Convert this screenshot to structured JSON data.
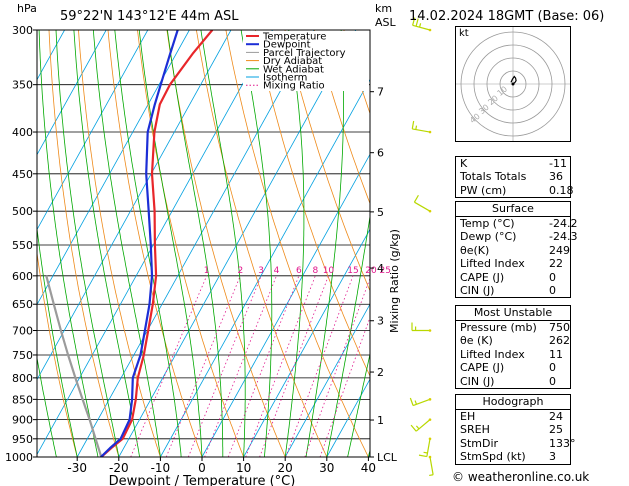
{
  "header": {
    "pressure_unit": "hPa",
    "location": "59°22'N 143°12'E 44m ASL",
    "height_unit": "km\nASL",
    "height_unit_line1": "km",
    "height_unit_line2": "ASL",
    "datetime": "14.02.2024 18GMT (Base: 06)"
  },
  "colors": {
    "temperature": "#e8262a",
    "dewpoint": "#1c2ed6",
    "parcel": "#9b9b9b",
    "dry_adiabat": "#ee8a1a",
    "wet_adiabat": "#00a800",
    "isotherm": "#00a0e0",
    "mixing_ratio": "#e0168c"
  },
  "chart_data": {
    "type": "skew-t",
    "xlabel": "Dewpoint / Temperature (°C)",
    "ylabel_right": "Mixing Ratio (g/kg)",
    "x_ticks": [
      -30,
      -20,
      -10,
      0,
      10,
      20,
      30,
      40
    ],
    "x_tick_labels": [
      "-30",
      "-20",
      "-10",
      "0",
      "10",
      "20",
      "30",
      "40"
    ],
    "pressure_levels": [
      300,
      350,
      400,
      450,
      500,
      550,
      600,
      650,
      700,
      750,
      800,
      850,
      900,
      950,
      1000
    ],
    "pressure_labels": [
      "300",
      "350",
      "400",
      "450",
      "500",
      "550",
      "600",
      "650",
      "700",
      "750",
      "800",
      "850",
      "900",
      "950",
      "1000"
    ],
    "height_km": [
      {
        "label": "7",
        "p": 357
      },
      {
        "label": "6",
        "p": 424
      },
      {
        "label": "5",
        "p": 501
      },
      {
        "label": "4",
        "p": 587
      },
      {
        "label": "3",
        "p": 681
      },
      {
        "label": "2",
        "p": 787
      },
      {
        "label": "1",
        "p": 901
      },
      {
        "label": "LCL",
        "p": 1000
      }
    ],
    "mixing_ratio_labels": [
      "1",
      "2",
      "3",
      "4",
      "6",
      "8",
      "10",
      "15",
      "20",
      "25"
    ],
    "mixing_ratio_values": [
      1,
      2,
      3,
      4,
      6,
      8,
      10,
      15,
      20,
      25
    ],
    "legend": [
      "Temperature",
      "Dewpoint",
      "Parcel Trajectory",
      "Dry Adiabat",
      "Wet Adiabat",
      "Isotherm",
      "Mixing Ratio"
    ],
    "temperature": [
      {
        "p": 1000,
        "t": -24.2
      },
      {
        "p": 975,
        "t": -23.0
      },
      {
        "p": 950,
        "t": -21.5
      },
      {
        "p": 900,
        "t": -21.8
      },
      {
        "p": 850,
        "t": -23.6
      },
      {
        "p": 800,
        "t": -26.0
      },
      {
        "p": 750,
        "t": -27.6
      },
      {
        "p": 700,
        "t": -29.8
      },
      {
        "p": 650,
        "t": -32.2
      },
      {
        "p": 600,
        "t": -35.2
      },
      {
        "p": 550,
        "t": -39.6
      },
      {
        "p": 500,
        "t": -44.2
      },
      {
        "p": 450,
        "t": -49.8
      },
      {
        "p": 400,
        "t": -54.8
      },
      {
        "p": 370,
        "t": -57.2
      },
      {
        "p": 350,
        "t": -57.4
      },
      {
        "p": 320,
        "t": -56.0
      },
      {
        "p": 300,
        "t": -54.5
      }
    ],
    "dewpoint": [
      {
        "p": 1000,
        "t": -24.3
      },
      {
        "p": 975,
        "t": -23.3
      },
      {
        "p": 950,
        "t": -22.0
      },
      {
        "p": 900,
        "t": -22.4
      },
      {
        "p": 850,
        "t": -24.5
      },
      {
        "p": 800,
        "t": -27.2
      },
      {
        "p": 750,
        "t": -28.4
      },
      {
        "p": 700,
        "t": -30.6
      },
      {
        "p": 650,
        "t": -33.0
      },
      {
        "p": 600,
        "t": -36.2
      },
      {
        "p": 550,
        "t": -40.6
      },
      {
        "p": 500,
        "t": -45.6
      },
      {
        "p": 450,
        "t": -51.2
      },
      {
        "p": 400,
        "t": -56.4
      },
      {
        "p": 370,
        "t": -58.4
      },
      {
        "p": 350,
        "t": -59.6
      },
      {
        "p": 320,
        "t": -61.5
      },
      {
        "p": 300,
        "t": -62.8
      }
    ],
    "parcel": [
      {
        "p": 1000,
        "t": -24.2
      },
      {
        "p": 950,
        "t": -28.0
      },
      {
        "p": 900,
        "t": -32.0
      },
      {
        "p": 850,
        "t": -36.4
      },
      {
        "p": 800,
        "t": -41.0
      },
      {
        "p": 750,
        "t": -45.8
      },
      {
        "p": 700,
        "t": -50.8
      },
      {
        "p": 650,
        "t": -56.0
      },
      {
        "p": 600,
        "t": -61.6
      }
    ],
    "wind_barbs": [
      {
        "p": 300,
        "dir": 285,
        "kt": 15
      },
      {
        "p": 400,
        "dir": 280,
        "kt": 5
      },
      {
        "p": 500,
        "dir": 300,
        "kt": 10
      },
      {
        "p": 700,
        "dir": 270,
        "kt": 5
      },
      {
        "p": 850,
        "dir": 250,
        "kt": 5
      },
      {
        "p": 900,
        "dir": 230,
        "kt": 5
      },
      {
        "p": 950,
        "dir": 190,
        "kt": 5
      },
      {
        "p": 1000,
        "dir": 170,
        "kt": 3
      }
    ],
    "hodograph": {
      "unit_label": "kt",
      "ring_labels": [
        "10",
        "20",
        "30",
        "40"
      ],
      "trace": [
        [
          0,
          0
        ],
        [
          1.5,
          1.2
        ],
        [
          2.4,
          2.6
        ],
        [
          2.0,
          4.5
        ],
        [
          1.0,
          5.8
        ],
        [
          -0.4,
          3.8
        ],
        [
          -1.5,
          1.2
        ]
      ]
    }
  },
  "indices": {
    "k_label": "K",
    "k_value": "-11",
    "tt_label": "Totals Totals",
    "tt_value": "36",
    "pw_label": "PW (cm)",
    "pw_value": "0.18"
  },
  "surface": {
    "title": "Surface",
    "temp_label": "Temp (°C)",
    "temp_value": "-24.2",
    "dewp_label": "Dewp (°C)",
    "dewp_value": "-24.3",
    "thetae_label": "θe(K)",
    "thetae_value": "249",
    "li_label": "Lifted Index",
    "li_value": "22",
    "cape_label": "CAPE (J)",
    "cape_value": "0",
    "cin_label": "CIN (J)",
    "cin_value": "0"
  },
  "most_unstable": {
    "title": "Most Unstable",
    "pressure_label": "Pressure (mb)",
    "pressure_value": "750",
    "thetae_label": "θe (K)",
    "thetae_value": "262",
    "li_label": "Lifted Index",
    "li_value": "11",
    "cape_label": "CAPE (J)",
    "cape_value": "0",
    "cin_label": "CIN (J)",
    "cin_value": "0"
  },
  "hodograph_params": {
    "title": "Hodograph",
    "eh_label": "EH",
    "eh_value": "24",
    "sreh_label": "SREH",
    "sreh_value": "25",
    "stmdir_label": "StmDir",
    "stmdir_value": "133°",
    "stmspd_label": "StmSpd (kt)",
    "stmspd_value": "3"
  },
  "footer": {
    "copyright": "© weatheronline.co.uk"
  }
}
